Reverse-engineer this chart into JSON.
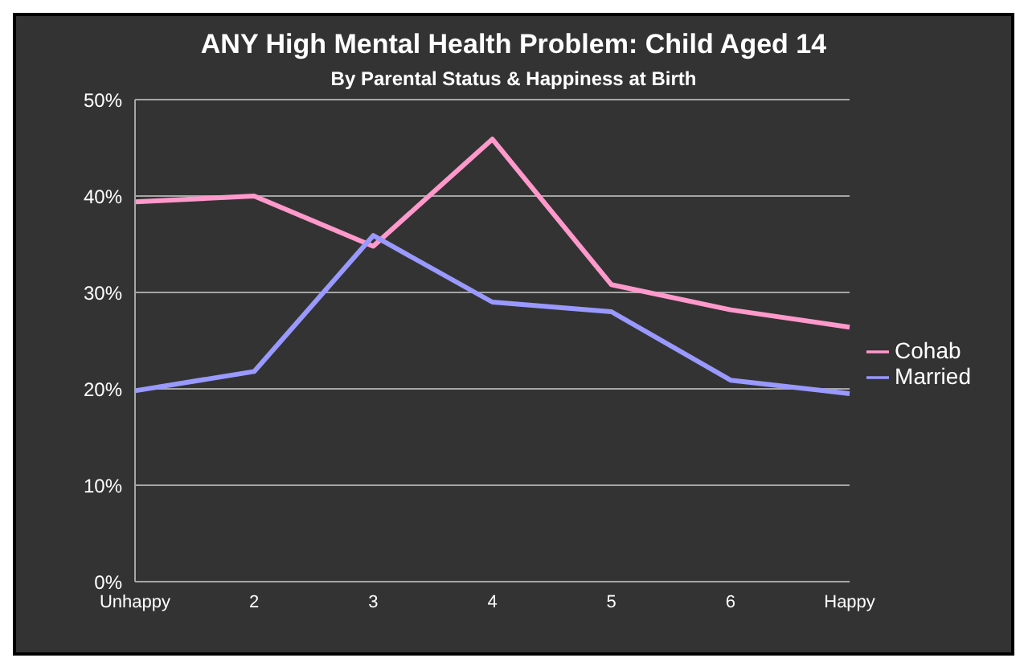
{
  "chart_data": {
    "type": "line",
    "title": "ANY High Mental Health Problem: Child Aged 14",
    "subtitle": "By Parental Status & Happiness at Birth",
    "categories": [
      "Unhappy",
      "2",
      "3",
      "4",
      "5",
      "6",
      "Happy"
    ],
    "series": [
      {
        "name": "Cohab",
        "color": "#ff99cc",
        "values": [
          39.4,
          40,
          34.8,
          45.9,
          30.8,
          28.2,
          26.4
        ]
      },
      {
        "name": "Married",
        "color": "#9999ff",
        "values": [
          19.8,
          21.8,
          35.9,
          29,
          28,
          20.9,
          19.5
        ]
      }
    ],
    "ylim": [
      0,
      50
    ],
    "yticks": [
      {
        "value": 0,
        "label": "0%"
      },
      {
        "value": 10,
        "label": "10%"
      },
      {
        "value": 20,
        "label": "20%"
      },
      {
        "value": 30,
        "label": "30%"
      },
      {
        "value": 40,
        "label": "40%"
      },
      {
        "value": 50,
        "label": "50%"
      }
    ],
    "grid": "y",
    "legend": "right",
    "marker": "none",
    "line_style": "solid"
  }
}
